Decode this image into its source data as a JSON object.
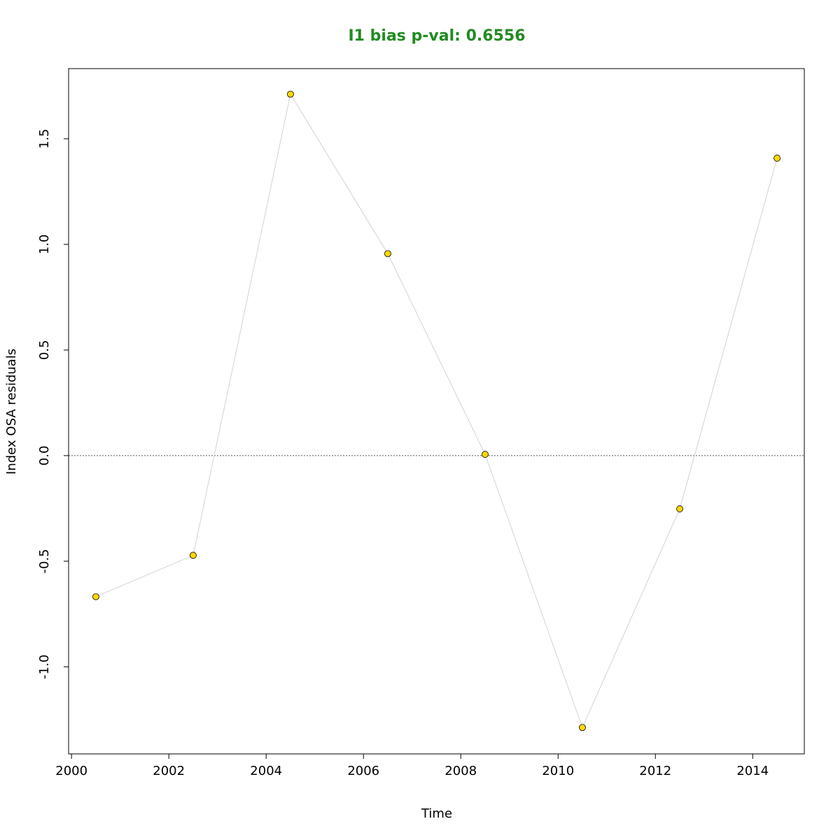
{
  "chart_data": {
    "type": "scatter",
    "title": "I1 bias p-val: 0.6556",
    "xlabel": "Time",
    "ylabel": "Index OSA residuals",
    "xlim": [
      1999.94,
      2015.06
    ],
    "ylim": [
      -1.412,
      1.832
    ],
    "x_ticks": [
      2000,
      2002,
      2004,
      2006,
      2008,
      2010,
      2012,
      2014
    ],
    "x_tick_labels": [
      "2000",
      "2002",
      "2004",
      "2006",
      "2008",
      "2010",
      "2012",
      "2014"
    ],
    "y_ticks": [
      -1.0,
      -0.5,
      0.0,
      0.5,
      1.0,
      1.5
    ],
    "y_tick_labels": [
      "-1.0",
      "-0.5",
      "0.0",
      "0.5",
      "1.0",
      "1.5"
    ],
    "reference_line_y": 0,
    "grid": false,
    "series": [
      {
        "x": [
          2000.5,
          2002.5,
          2004.5,
          2006.5,
          2008.5,
          2010.5,
          2012.5,
          2014.5
        ],
        "y": [
          -0.668,
          -0.472,
          1.711,
          0.956,
          0.006,
          -1.287,
          -0.252,
          1.408
        ]
      }
    ]
  },
  "colors": {
    "title": "#228B22",
    "point_fill": "#FFD700",
    "point_stroke": "#000000",
    "line": "#D3D3D3",
    "reference_line": "#555555",
    "axis": "#000000"
  }
}
